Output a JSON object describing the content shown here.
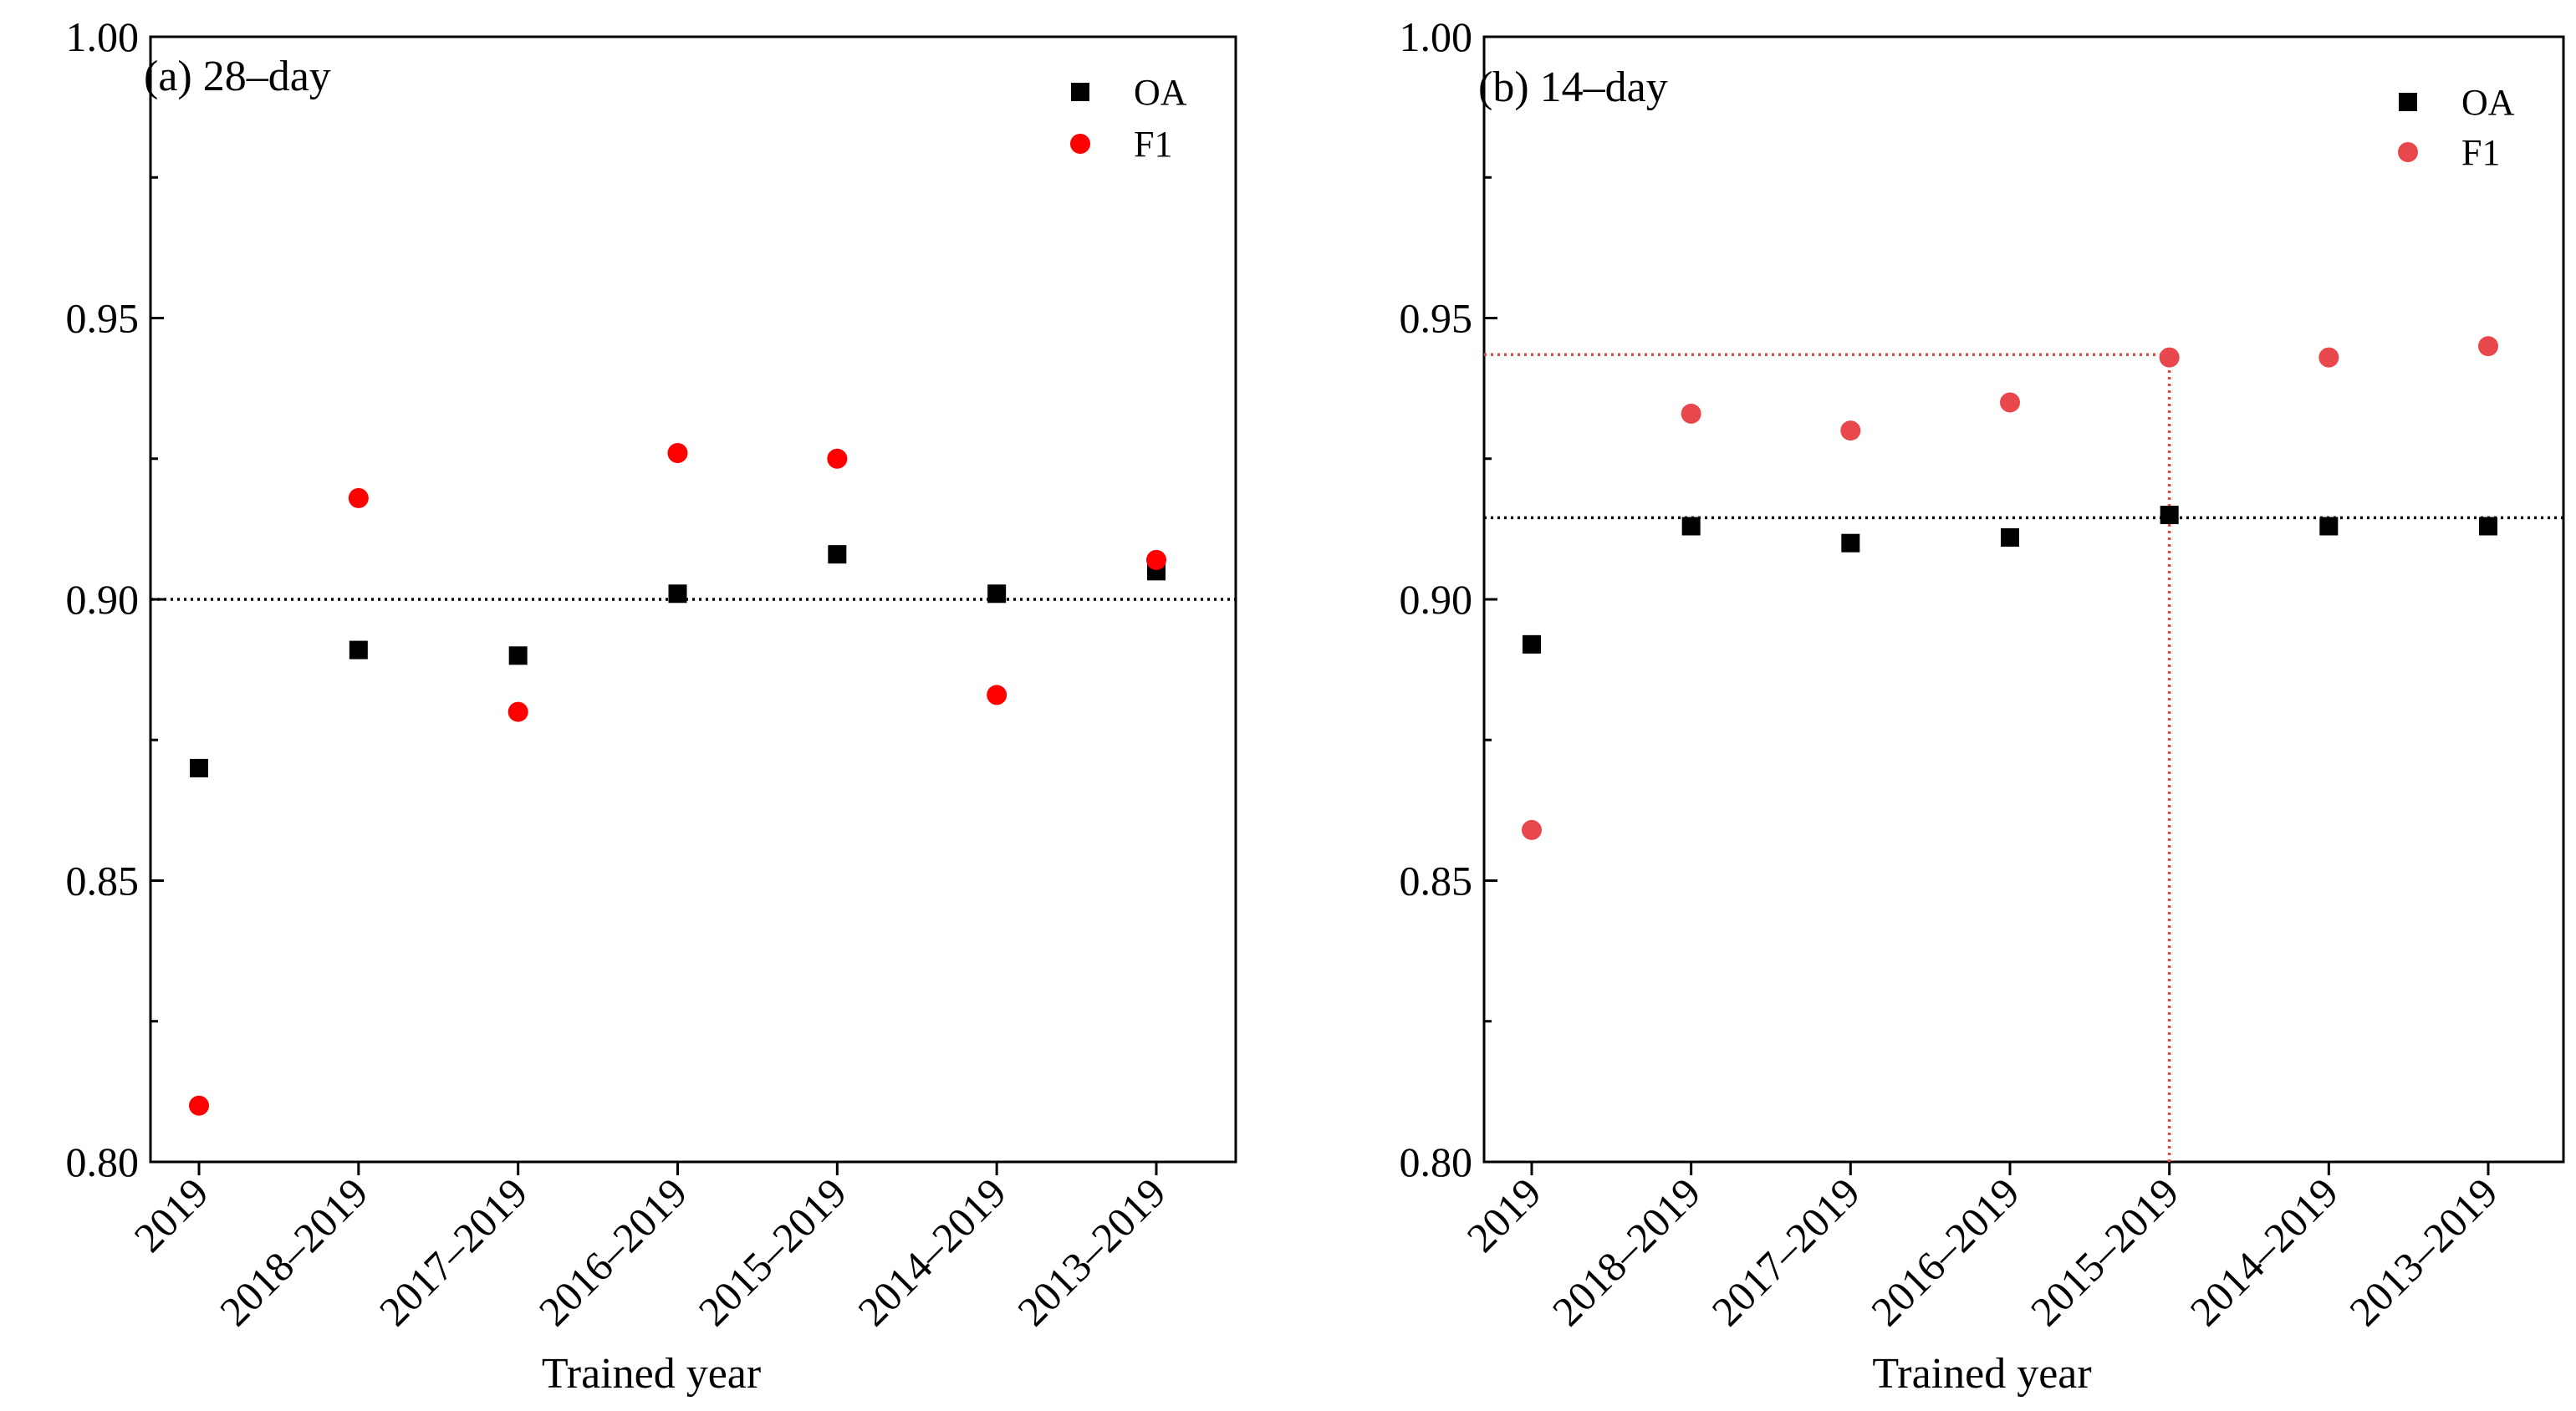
{
  "chart_data": [
    {
      "type": "scatter",
      "title": "(a) 28–day",
      "xlabel": "Trained year",
      "ylabel": "",
      "categories": [
        "2019",
        "2018–2019",
        "2017–2019",
        "2016–2019",
        "2015–2019",
        "2014–2019",
        "2013–2019"
      ],
      "ylim": [
        0.8,
        1.0
      ],
      "yticks": [
        "0.80",
        "0.85",
        "0.90",
        "0.95",
        "1.00"
      ],
      "series": [
        {
          "name": "OA",
          "marker": "square",
          "color": "#000000",
          "values": [
            0.87,
            0.891,
            0.89,
            0.901,
            0.908,
            0.901,
            0.905
          ]
        },
        {
          "name": "F1",
          "marker": "circle",
          "color": "#ff0000",
          "values": [
            0.81,
            0.918,
            0.88,
            0.926,
            0.925,
            0.883,
            0.907
          ]
        }
      ],
      "reference_lines": [
        {
          "orientation": "horizontal",
          "value": 0.9,
          "style": "dotted",
          "color": "#000000"
        }
      ],
      "legend_position": "top-right"
    },
    {
      "type": "scatter",
      "title": "(b) 14–day",
      "xlabel": "Trained year",
      "ylabel": "",
      "categories": [
        "2019",
        "2018–2019",
        "2017–2019",
        "2016–2019",
        "2015–2019",
        "2014–2019",
        "2013–2019"
      ],
      "ylim": [
        0.8,
        1.0
      ],
      "yticks": [
        "0.80",
        "0.85",
        "0.90",
        "0.95",
        "1.00"
      ],
      "series": [
        {
          "name": "OA",
          "marker": "square",
          "color": "#000000",
          "values": [
            0.892,
            0.913,
            0.91,
            0.911,
            0.915,
            0.913,
            0.913
          ]
        },
        {
          "name": "F1",
          "marker": "circle",
          "color": "#e8474b",
          "values": [
            0.859,
            0.933,
            0.93,
            0.935,
            0.943,
            0.943,
            0.945
          ]
        }
      ],
      "reference_lines": [
        {
          "orientation": "horizontal",
          "value": 0.9145,
          "style": "dotted",
          "color": "#000000"
        },
        {
          "orientation": "horizontal",
          "value": 0.9435,
          "style": "dotted",
          "color": "#e8474b",
          "to_category": "2015–2019"
        },
        {
          "orientation": "vertical",
          "category": "2015–2019",
          "style": "dotted",
          "color": "#e8474b",
          "to_value": 0.9435
        }
      ],
      "legend_position": "top-right"
    }
  ]
}
